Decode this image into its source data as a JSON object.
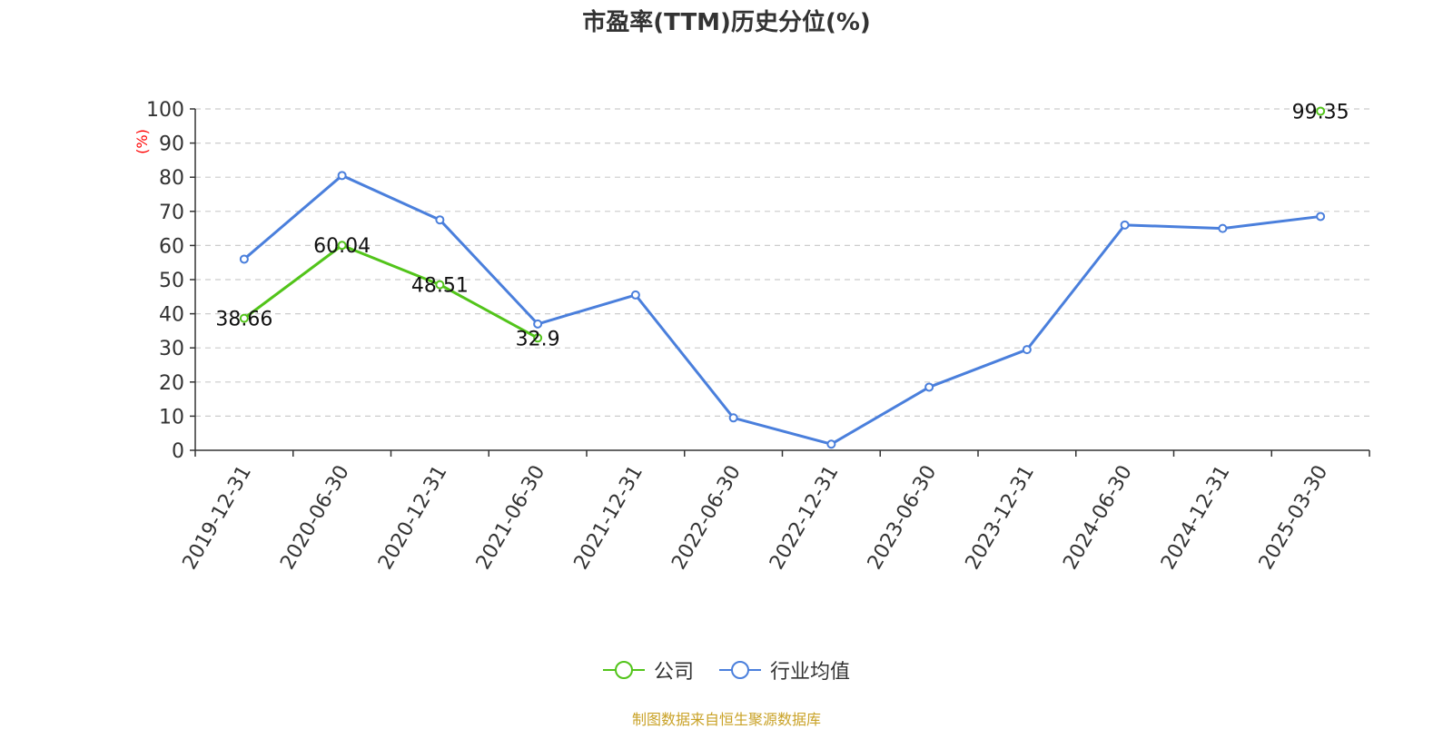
{
  "chart_data": {
    "type": "line",
    "title": "市盈率(TTM)历史分位(%)",
    "ylabel": "(%)",
    "xlabel": "",
    "ylim": [
      0,
      100
    ],
    "yticks": [
      0,
      10,
      20,
      30,
      40,
      50,
      60,
      70,
      80,
      90,
      100
    ],
    "grid": true,
    "legend_position": "bottom",
    "categories": [
      "2019-12-31",
      "2020-06-30",
      "2020-12-31",
      "2021-06-30",
      "2021-12-31",
      "2022-06-30",
      "2022-12-31",
      "2023-06-30",
      "2023-12-31",
      "2024-06-30",
      "2024-12-31",
      "2025-03-30"
    ],
    "series": [
      {
        "name": "公司",
        "color": "#52c41a",
        "values": [
          38.66,
          60.04,
          48.51,
          32.9,
          null,
          null,
          null,
          null,
          null,
          null,
          null,
          99.35
        ],
        "data_labels": [
          "38.66",
          "60.04",
          "48.51",
          "32.9",
          null,
          null,
          null,
          null,
          null,
          null,
          null,
          "99.35"
        ]
      },
      {
        "name": "行业均值",
        "color": "#4a7fdc",
        "values": [
          56,
          80.5,
          67.5,
          37,
          45.5,
          9.5,
          1.8,
          18.5,
          29.5,
          66,
          65,
          68.5
        ]
      }
    ]
  },
  "source_note": "制图数据来自恒生聚源数据库"
}
